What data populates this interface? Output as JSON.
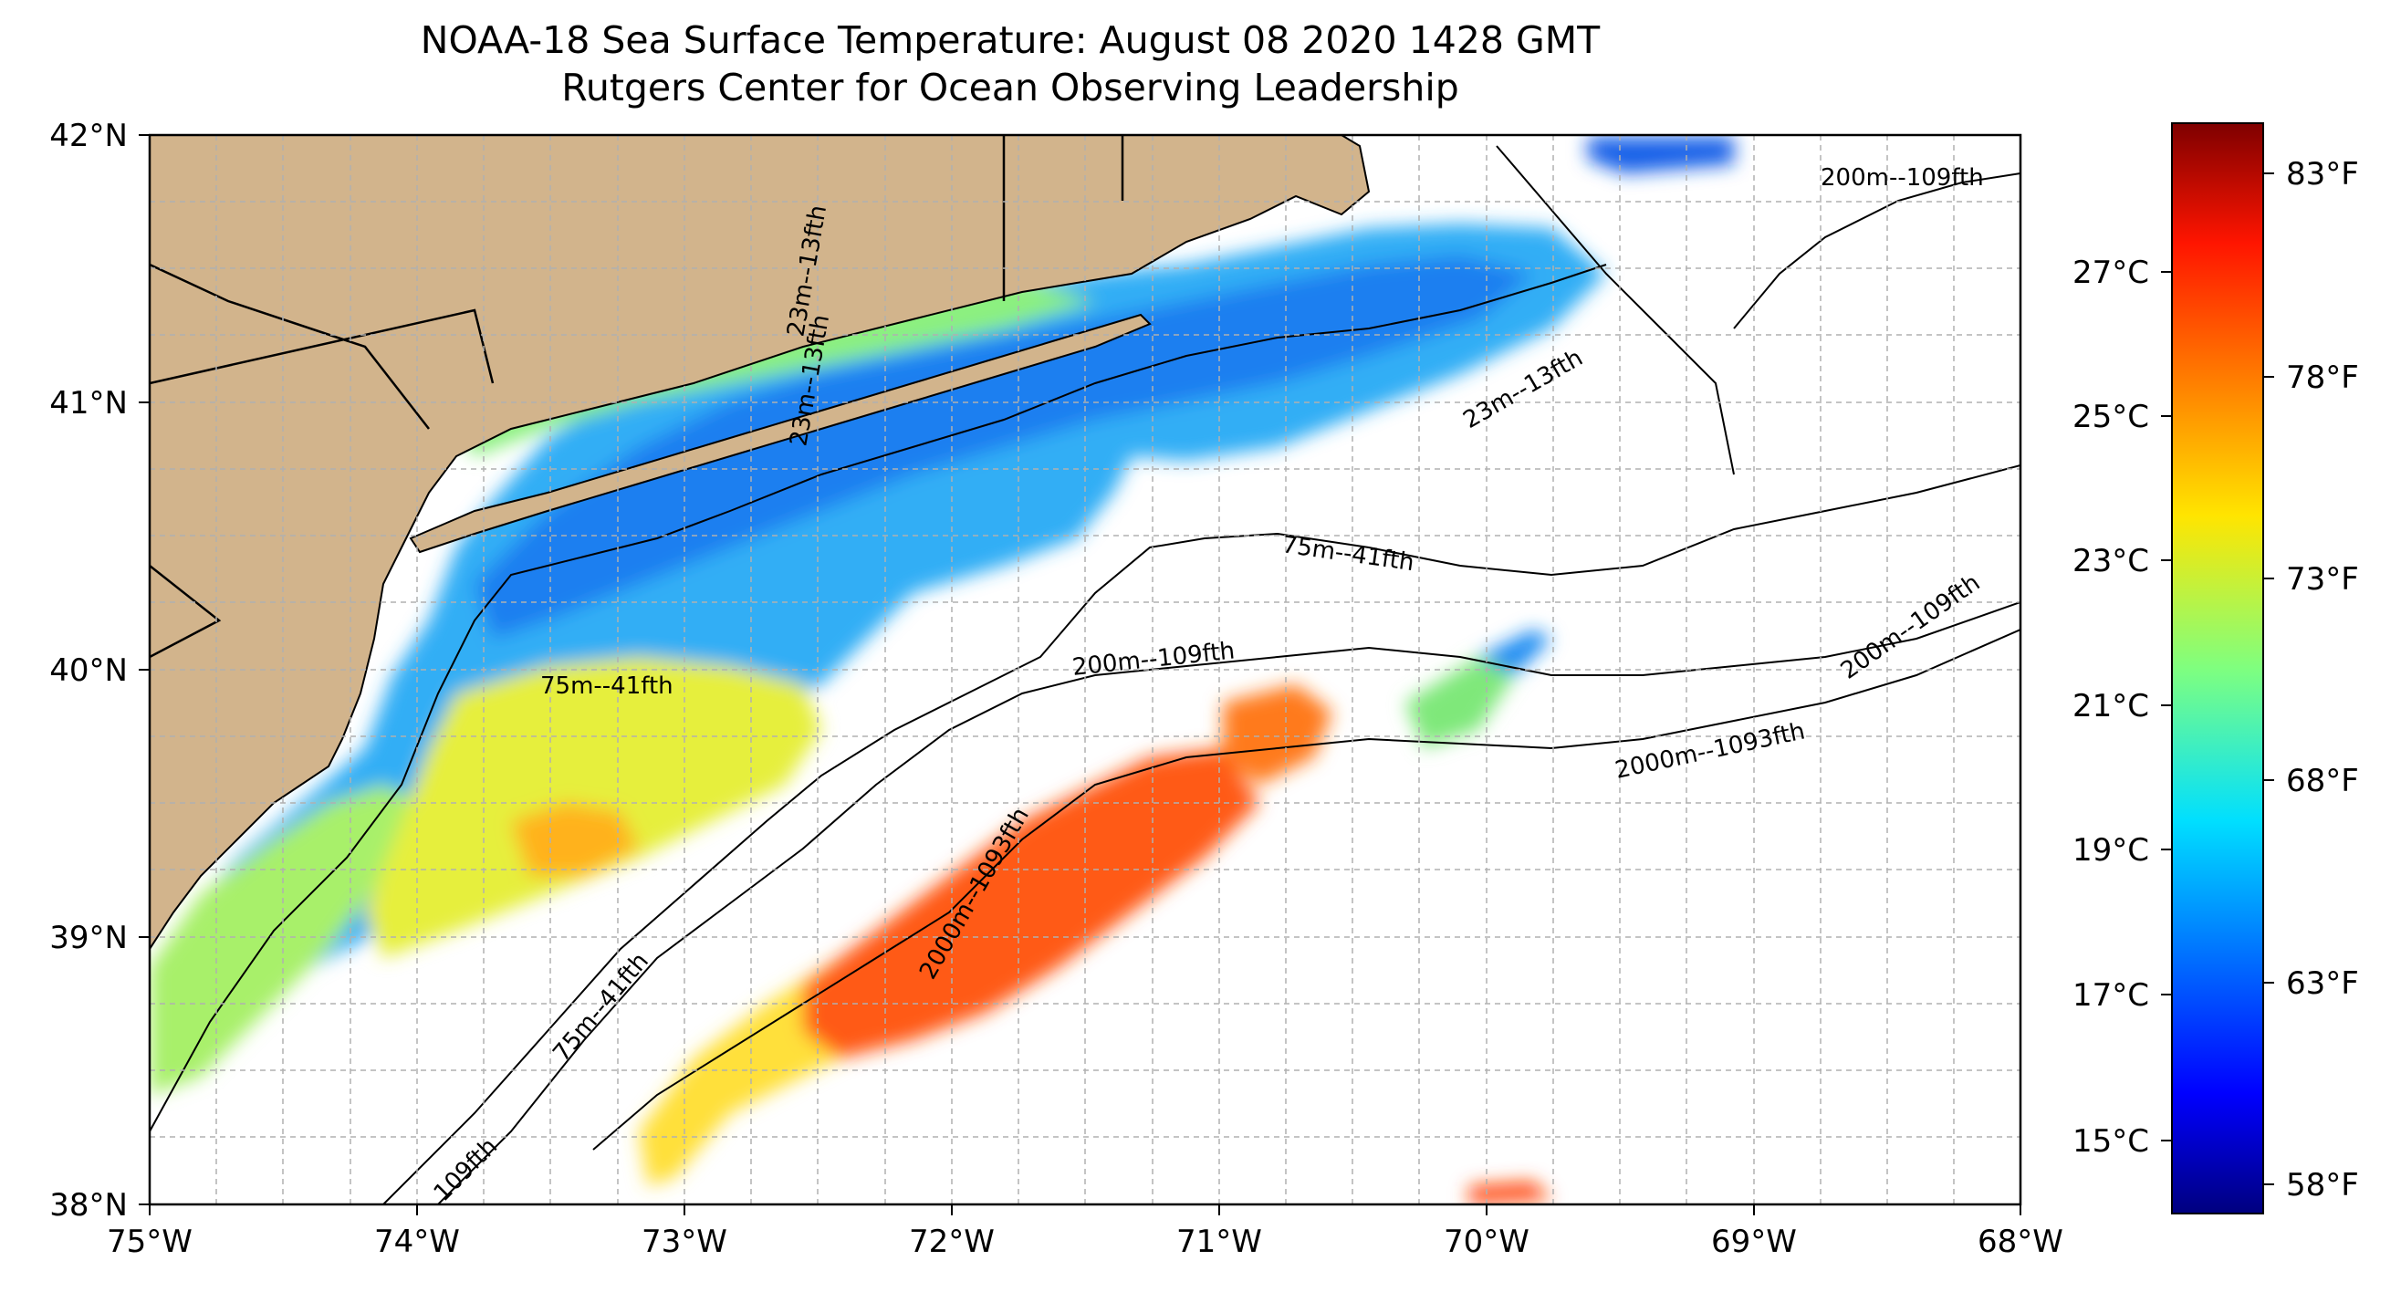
{
  "title": {
    "line1": "NOAA-18 Sea Surface Temperature: August 08 2020 1428 GMT",
    "line2": "Rutgers Center for Ocean Observing Leadership"
  },
  "map": {
    "lon_ticks": [
      "75°W",
      "74°W",
      "73°W",
      "72°W",
      "71°W",
      "70°W",
      "69°W",
      "68°W"
    ],
    "lat_ticks": [
      "38°N",
      "39°N",
      "40°N",
      "41°N",
      "42°N"
    ],
    "extent": {
      "lon": [
        -75,
        -68
      ],
      "lat": [
        38,
        42
      ]
    },
    "land_color": "#d2b48c",
    "grid": true,
    "contour_labels": [
      "200m--109fth",
      "23m--13fth",
      "75m--41fth",
      "200m--109fth",
      "200m--109fth",
      "2000m--1093fth",
      "23m--13fth",
      "75m--41fth",
      "2000m--1093fth",
      "75m--41fth",
      "109fth",
      "23m--13fth"
    ]
  },
  "colorbar": {
    "colormap": "jet",
    "celsius_ticks": [
      "27°C",
      "25°C",
      "23°C",
      "21°C",
      "19°C",
      "17°C",
      "15°C"
    ],
    "fahrenheit_ticks": [
      "83°F",
      "78°F",
      "73°F",
      "68°F",
      "63°F",
      "58°F"
    ],
    "range_celsius": [
      14.1,
      28.8
    ]
  }
}
